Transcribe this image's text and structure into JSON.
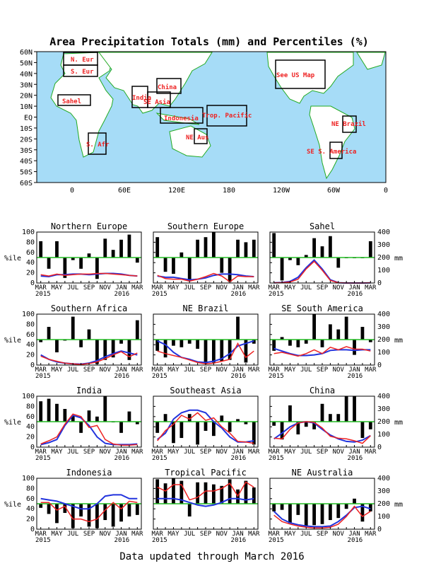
{
  "title": "Area Precipitation Totals (mm) and Percentiles (%)",
  "footer": "Data updated through March 2016",
  "map": {
    "lat_labels": [
      "60N",
      "50N",
      "40N",
      "30N",
      "20N",
      "10N",
      "EQ",
      "10S",
      "20S",
      "30S",
      "40S",
      "50S",
      "60S"
    ],
    "lon_labels": [
      "0",
      "60E",
      "120E",
      "180",
      "120W",
      "60W",
      "0"
    ],
    "region_labels": [
      "N. Eur",
      "S. Eur",
      "Sahel",
      "S. Afr",
      "India",
      "SE Asia",
      "China",
      "Indonesia",
      "Trop. Pacific",
      "NE Aus",
      "See US Map",
      "NE Brazil",
      "SE S. America"
    ]
  },
  "axes": {
    "left_ticks": [
      "0",
      "20",
      "40",
      "60",
      "80",
      "100"
    ],
    "right_ticks": [
      "0",
      "100",
      "200",
      "300",
      "400"
    ],
    "left_unit": "%ile",
    "right_unit": "mm",
    "x_months": [
      "MAR",
      "MAY",
      "JUL",
      "SEP",
      "NOV",
      "JAN",
      "MAR"
    ],
    "x_year1": "2015",
    "x_year2": "2016"
  },
  "colors": {
    "bars": "#000000",
    "red_line": "#ee2222",
    "blue_line": "#2233dd",
    "reference_line": "#22bb22",
    "ocean": "#a6dcf7",
    "land": "#ffffff",
    "coast": "#22aa22",
    "map_label": "#ee2222"
  },
  "chart_data": [
    {
      "type": "bar",
      "title": "Northern Europe",
      "x": [
        "MAR 2015",
        "APR",
        "MAY",
        "JUN",
        "JUL",
        "AUG",
        "SEP",
        "OCT",
        "NOV",
        "DEC",
        "JAN 2016",
        "FEB",
        "MAR"
      ],
      "percentiles": [
        82,
        28,
        82,
        10,
        45,
        28,
        58,
        8,
        87,
        65,
        85,
        95,
        40
      ],
      "observed_mm": [
        65,
        55,
        70,
        60,
        65,
        70,
        70,
        75,
        75,
        70,
        65,
        60,
        55
      ],
      "normal_mm": [
        55,
        50,
        65,
        65,
        70,
        70,
        65,
        70,
        75,
        75,
        70,
        60,
        55
      ]
    },
    {
      "type": "bar",
      "title": "Southern Europe",
      "x": [
        "MAR 2015",
        "APR",
        "MAY",
        "JUN",
        "JUL",
        "AUG",
        "SEP",
        "OCT",
        "NOV",
        "DEC",
        "JAN 2016",
        "FEB",
        "MAR"
      ],
      "percentiles": [
        90,
        22,
        18,
        60,
        5,
        85,
        90,
        100,
        20,
        2,
        85,
        80,
        85
      ],
      "observed_mm": [
        60,
        35,
        30,
        30,
        15,
        30,
        50,
        75,
        55,
        10,
        55,
        50,
        50
      ],
      "normal_mm": [
        55,
        45,
        45,
        35,
        25,
        30,
        40,
        60,
        70,
        70,
        65,
        55,
        50
      ]
    },
    {
      "type": "bar",
      "title": "Sahel",
      "x": [
        "MAR 2015",
        "APR",
        "MAY",
        "JUN",
        "JUL",
        "AUG",
        "SEP",
        "OCT",
        "NOV",
        "DEC",
        "JAN 2016",
        "FEB",
        "MAR"
      ],
      "percentiles": [
        98,
        5,
        45,
        35,
        55,
        88,
        72,
        92,
        30,
        50,
        50,
        50,
        82
      ],
      "observed_mm": [
        1,
        3,
        8,
        30,
        110,
        170,
        100,
        20,
        2,
        0,
        0,
        0,
        1
      ],
      "normal_mm": [
        1,
        4,
        12,
        45,
        120,
        180,
        110,
        25,
        2,
        0,
        0,
        0,
        1
      ]
    },
    {
      "type": "bar",
      "title": "Southern Africa",
      "x": [
        "MAR 2015",
        "APR",
        "MAY",
        "JUN",
        "JUL",
        "AUG",
        "SEP",
        "OCT",
        "NOV",
        "DEC",
        "JAN 2016",
        "FEB",
        "MAR"
      ],
      "percentiles": [
        45,
        75,
        25,
        48,
        95,
        35,
        70,
        2,
        10,
        15,
        42,
        10,
        88
      ],
      "observed_mm": [
        70,
        45,
        30,
        15,
        10,
        5,
        12,
        25,
        50,
        80,
        105,
        65,
        95
      ],
      "normal_mm": [
        80,
        45,
        25,
        15,
        10,
        8,
        15,
        35,
        65,
        90,
        110,
        95,
        80
      ]
    },
    {
      "type": "bar",
      "title": "NE Brazil",
      "x": [
        "MAR 2015",
        "APR",
        "MAY",
        "JUN",
        "JUL",
        "AUG",
        "SEP",
        "OCT",
        "NOV",
        "DEC",
        "JAN 2016",
        "FEB",
        "MAR"
      ],
      "percentiles": [
        28,
        15,
        38,
        35,
        42,
        32,
        2,
        5,
        8,
        10,
        95,
        5,
        42
      ],
      "observed_mm": [
        110,
        90,
        75,
        60,
        40,
        20,
        10,
        15,
        30,
        45,
        170,
        60,
        110
      ],
      "normal_mm": [
        190,
        160,
        100,
        60,
        45,
        25,
        20,
        30,
        50,
        90,
        150,
        170,
        190
      ]
    },
    {
      "type": "bar",
      "title": "SE South America",
      "x": [
        "MAR 2015",
        "APR",
        "MAY",
        "JUN",
        "JUL",
        "AUG",
        "SEP",
        "OCT",
        "NOV",
        "DEC",
        "JAN 2016",
        "FEB",
        "MAR"
      ],
      "percentiles": [
        28,
        55,
        38,
        35,
        42,
        100,
        35,
        80,
        70,
        95,
        20,
        75,
        45
      ],
      "observed_mm": [
        90,
        100,
        85,
        70,
        90,
        120,
        90,
        140,
        120,
        145,
        125,
        125,
        110
      ],
      "normal_mm": [
        130,
        110,
        90,
        75,
        75,
        80,
        90,
        115,
        120,
        120,
        115,
        120,
        120
      ]
    },
    {
      "type": "bar",
      "title": "India",
      "x": [
        "MAR 2015",
        "APR",
        "MAY",
        "JUN",
        "JUL",
        "AUG",
        "SEP",
        "OCT",
        "NOV",
        "DEC",
        "JAN 2016",
        "FEB",
        "MAR"
      ],
      "percentiles": [
        90,
        95,
        85,
        75,
        62,
        28,
        72,
        60,
        100,
        50,
        28,
        70,
        45
      ],
      "observed_mm": [
        25,
        50,
        80,
        180,
        260,
        240,
        155,
        170,
        60,
        25,
        15,
        15,
        20
      ],
      "normal_mm": [
        20,
        35,
        60,
        170,
        250,
        230,
        170,
        80,
        30,
        20,
        20,
        20,
        25
      ]
    },
    {
      "type": "bar",
      "title": "Southeast Asia",
      "x": [
        "MAR 2015",
        "APR",
        "MAY",
        "JUN",
        "JUL",
        "AUG",
        "SEP",
        "OCT",
        "NOV",
        "DEC",
        "JAN 2016",
        "FEB",
        "MAR"
      ],
      "percentiles": [
        28,
        65,
        8,
        18,
        65,
        5,
        32,
        22,
        62,
        30,
        55,
        45,
        5
      ],
      "observed_mm": [
        50,
        130,
        180,
        250,
        220,
        270,
        210,
        230,
        160,
        110,
        45,
        40,
        30
      ],
      "normal_mm": [
        60,
        110,
        220,
        270,
        290,
        290,
        270,
        200,
        150,
        80,
        40,
        40,
        50
      ]
    },
    {
      "type": "bar",
      "title": "China",
      "x": [
        "MAR 2015",
        "APR",
        "MAY",
        "JUN",
        "JUL",
        "AUG",
        "SEP",
        "OCT",
        "NOV",
        "DEC",
        "JAN 2016",
        "FEB",
        "MAR"
      ],
      "percentiles": [
        42,
        15,
        82,
        25,
        40,
        35,
        85,
        65,
        65,
        100,
        100,
        18,
        35
      ],
      "observed_mm": [
        70,
        65,
        140,
        190,
        200,
        195,
        150,
        85,
        70,
        65,
        50,
        30,
        90
      ],
      "normal_mm": [
        65,
        110,
        160,
        190,
        200,
        190,
        140,
        95,
        65,
        45,
        40,
        55,
        90
      ]
    },
    {
      "type": "bar",
      "title": "Indonesia",
      "x": [
        "MAR 2015",
        "APR",
        "MAY",
        "JUN",
        "JUL",
        "AUG",
        "SEP",
        "OCT",
        "NOV",
        "DEC",
        "JAN 2016",
        "FEB",
        "MAR"
      ],
      "percentiles": [
        42,
        30,
        12,
        32,
        2,
        25,
        5,
        2,
        18,
        5,
        15,
        25,
        28
      ],
      "observed_mm": [
        210,
        210,
        150,
        180,
        80,
        80,
        60,
        80,
        150,
        210,
        160,
        220,
        210
      ],
      "normal_mm": [
        240,
        230,
        220,
        200,
        180,
        160,
        160,
        200,
        260,
        270,
        270,
        240,
        240
      ]
    },
    {
      "type": "bar",
      "title": "Tropical Pacific",
      "x": [
        "MAR 2015",
        "APR",
        "MAY",
        "JUN",
        "JUL",
        "AUG",
        "SEP",
        "OCT",
        "NOV",
        "DEC",
        "JAN 2016",
        "FEB",
        "MAR"
      ],
      "percentiles": [
        98,
        90,
        100,
        95,
        25,
        92,
        92,
        88,
        85,
        98,
        78,
        95,
        82
      ],
      "observed_mm": [
        330,
        300,
        350,
        350,
        230,
        250,
        300,
        300,
        320,
        360,
        260,
        370,
        330
      ],
      "normal_mm": [
        240,
        240,
        240,
        230,
        210,
        190,
        180,
        190,
        210,
        240,
        240,
        230,
        240
      ]
    },
    {
      "type": "bar",
      "title": "NE Australia",
      "x": [
        "MAR 2015",
        "APR",
        "MAY",
        "JUN",
        "JUL",
        "AUG",
        "SEP",
        "OCT",
        "NOV",
        "DEC",
        "JAN 2016",
        "FEB",
        "MAR"
      ],
      "percentiles": [
        35,
        38,
        12,
        28,
        5,
        8,
        10,
        18,
        22,
        40,
        60,
        15,
        35
      ],
      "observed_mm": [
        110,
        60,
        40,
        25,
        15,
        10,
        10,
        15,
        40,
        100,
        180,
        100,
        140
      ],
      "normal_mm": [
        140,
        80,
        50,
        35,
        25,
        20,
        20,
        25,
        60,
        110,
        170,
        180,
        160
      ]
    }
  ]
}
